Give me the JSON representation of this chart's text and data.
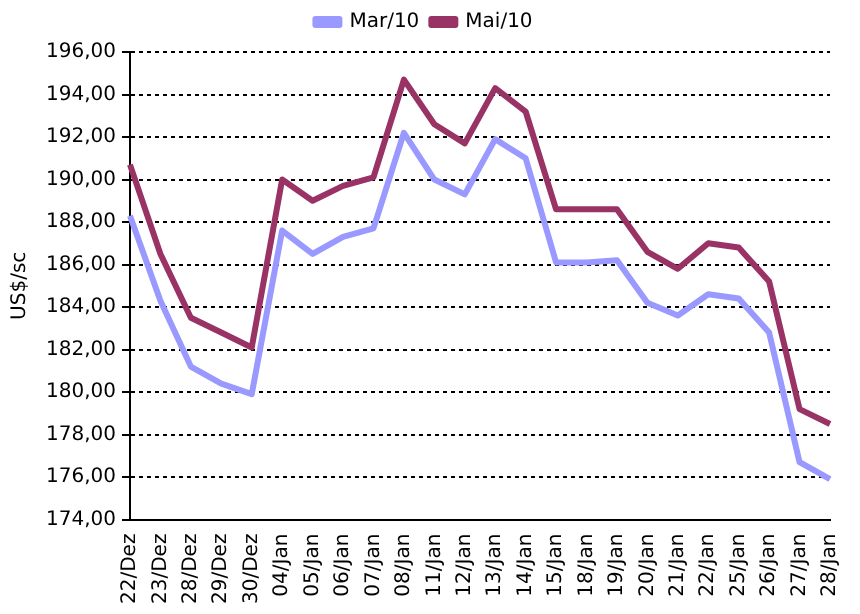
{
  "chart_data": {
    "type": "line",
    "ylabel": "US$/sc",
    "categories": [
      "22/Dez",
      "23/Dez",
      "28/Dez",
      "29/Dez",
      "30/Dez",
      "04/Jan",
      "05/Jan",
      "06/Jan",
      "07/Jan",
      "08/Jan",
      "11/Jan",
      "12/Jan",
      "13/Jan",
      "14/Jan",
      "15/Jan",
      "18/Jan",
      "19/Jan",
      "20/Jan",
      "21/Jan",
      "22/Jan",
      "25/Jan",
      "26/Jan",
      "27/Jan",
      "28/Jan"
    ],
    "series": [
      {
        "name": "Mar/10",
        "color": "#9999ff",
        "values": [
          188.3,
          184.3,
          181.2,
          180.4,
          179.9,
          187.6,
          186.5,
          187.3,
          187.7,
          192.2,
          190.0,
          189.3,
          191.9,
          191.0,
          186.1,
          186.1,
          186.2,
          184.2,
          183.6,
          184.6,
          184.4,
          182.8,
          176.7,
          175.9
        ]
      },
      {
        "name": "Mai/10",
        "color": "#993366",
        "values": [
          190.7,
          186.5,
          183.5,
          182.8,
          182.1,
          190.0,
          189.0,
          189.7,
          190.1,
          194.7,
          192.6,
          191.7,
          194.3,
          193.2,
          188.6,
          188.6,
          188.6,
          186.6,
          185.8,
          187.0,
          186.8,
          185.2,
          179.2,
          178.5
        ]
      }
    ],
    "ylim": [
      174,
      196
    ],
    "yticks": [
      {
        "value": 174,
        "label": "174,00"
      },
      {
        "value": 176,
        "label": "176,00"
      },
      {
        "value": 178,
        "label": "178,00"
      },
      {
        "value": 180,
        "label": "180,00"
      },
      {
        "value": 182,
        "label": "182,00"
      },
      {
        "value": 184,
        "label": "184,00"
      },
      {
        "value": 186,
        "label": "186,00"
      },
      {
        "value": 188,
        "label": "188,00"
      },
      {
        "value": 190,
        "label": "190,00"
      },
      {
        "value": 192,
        "label": "192,00"
      },
      {
        "value": 194,
        "label": "194,00"
      },
      {
        "value": 196,
        "label": "196,00"
      }
    ],
    "grid": "y",
    "legend": "top",
    "marker": "none",
    "line_style": "solid"
  }
}
